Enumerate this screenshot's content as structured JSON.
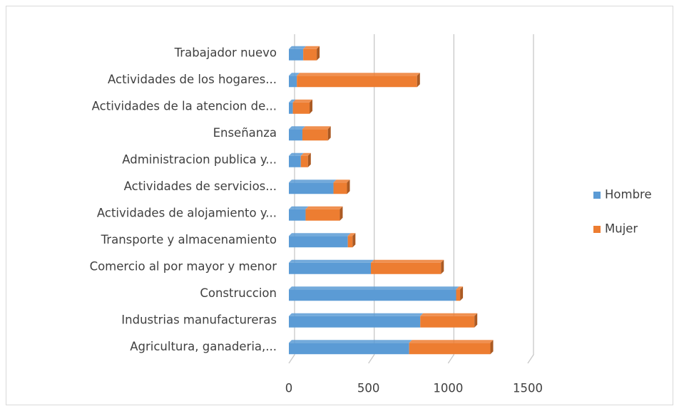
{
  "chart_data": {
    "type": "bar",
    "orientation": "horizontal",
    "stacked": true,
    "categories": [
      "Trabajador nuevo",
      "Actividades de los hogares...",
      "Actividades de la atencion de...",
      "Enseñanza",
      "Administracion publica y...",
      "Actividades de servicios...",
      "Actividades de alojamiento y...",
      "Transporte y almacenamiento",
      "Comercio al por mayor y menor",
      "Construccion",
      "Industrias manufactureras",
      "Agricultura, ganaderia,..."
    ],
    "series": [
      {
        "name": "Hombre",
        "color": "#5b9bd5",
        "values": [
          90,
          50,
          25,
          85,
          75,
          280,
          105,
          370,
          515,
          1050,
          825,
          755
        ]
      },
      {
        "name": "Mujer",
        "color": "#ed7d31",
        "values": [
          85,
          755,
          105,
          160,
          45,
          85,
          215,
          30,
          440,
          25,
          340,
          510
        ]
      }
    ],
    "xlim": [
      0,
      1500
    ],
    "xticks": [
      0,
      500,
      1000,
      1500
    ],
    "grid": true,
    "legend": "right"
  }
}
